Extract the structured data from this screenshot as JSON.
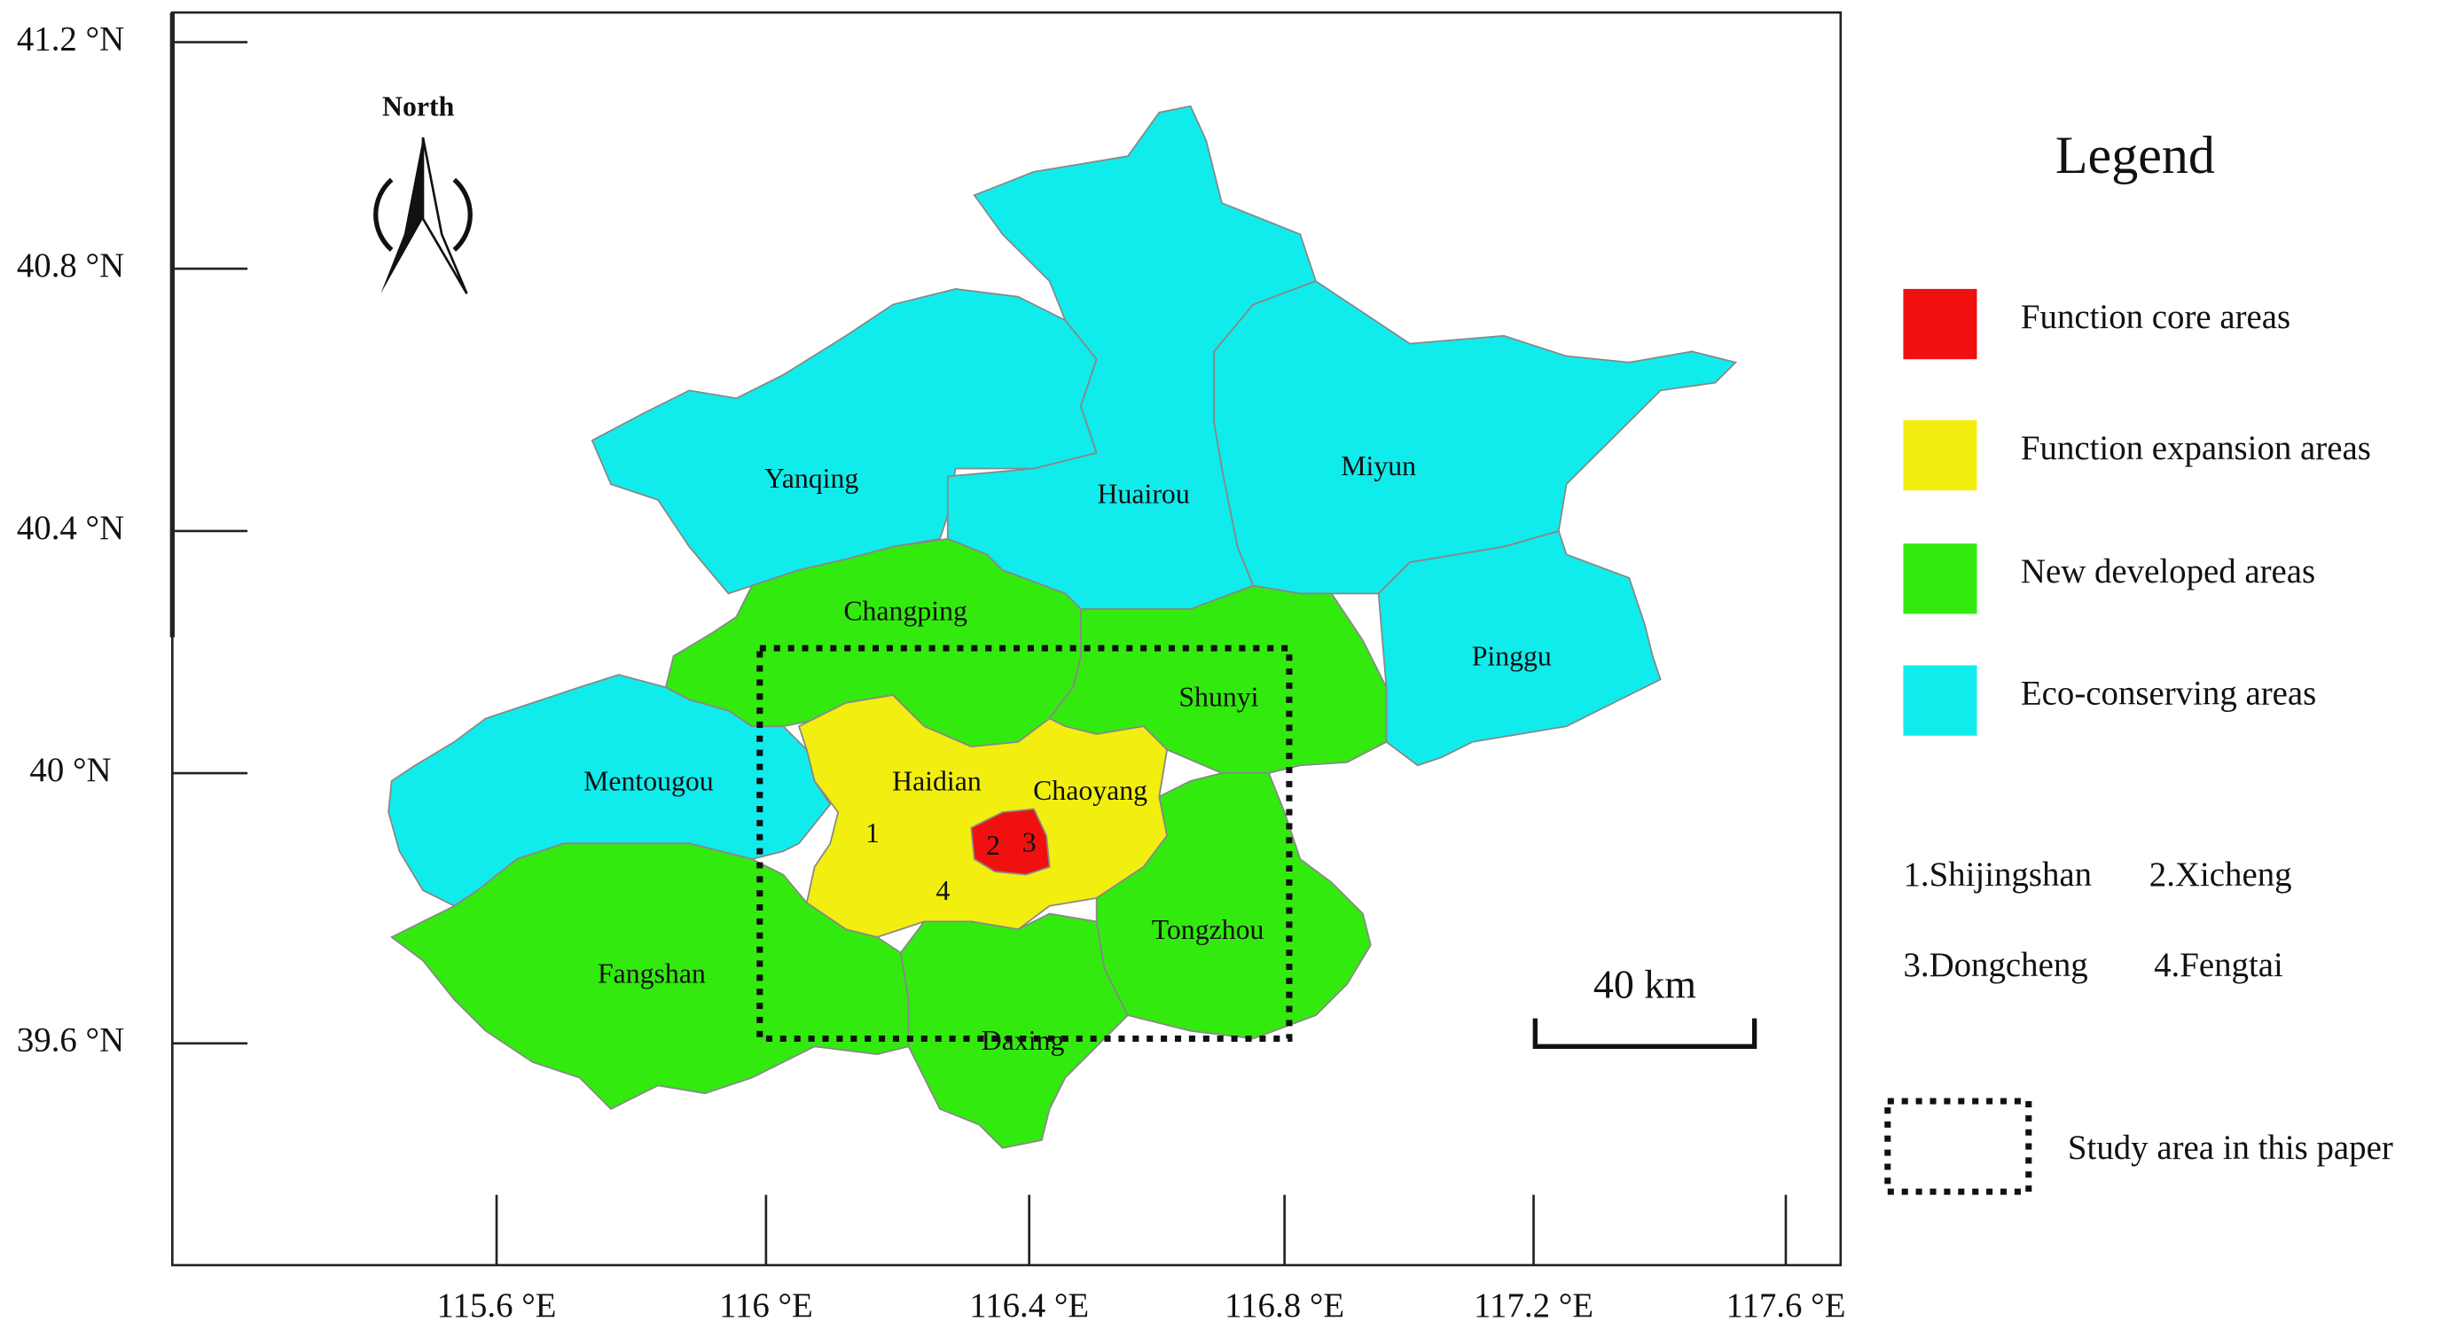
{
  "axes": {
    "lat_ticks": [
      "41.2 °N",
      "40.8 °N",
      "40.4 °N",
      "40 °N",
      "39.6 °N"
    ],
    "lon_ticks": [
      "115.6 °E",
      "116 °E",
      "116.4 °E",
      "116.8 °E",
      "117.2 °E",
      "117.6 °E"
    ]
  },
  "north_arrow": {
    "label": "North"
  },
  "districts": [
    "Yanqing",
    "Huairou",
    "Miyun",
    "Pinggu",
    "Changping",
    "Shunyi",
    "Mentougou",
    "Haidian",
    "Chaoyang",
    "Fangshan",
    "Daxing",
    "Tongzhou",
    "1",
    "2",
    "3",
    "4"
  ],
  "legend": {
    "title": "Legend",
    "items": [
      {
        "label": "Function core areas",
        "color": "#f01010"
      },
      {
        "label": "Function expansion areas",
        "color": "#f2ee0f"
      },
      {
        "label": "New developed areas",
        "color": "#33ea0e"
      },
      {
        "label": "Eco-conserving areas",
        "color": "#10ecec"
      }
    ],
    "key": [
      "1.Shijingshan",
      "2.Xicheng",
      "3.Dongcheng",
      "4.Fengtai"
    ],
    "study_area": "Study area in this paper"
  },
  "scale_bar": {
    "label": "40 km"
  }
}
